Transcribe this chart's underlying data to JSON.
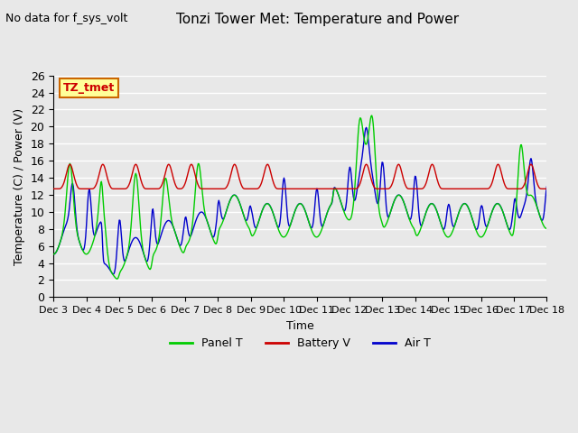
{
  "title": "Tonzi Tower Met: Temperature and Power",
  "top_left_text": "No data for f_sys_volt",
  "box_label": "TZ_tmet",
  "xlabel": "Time",
  "ylabel": "Temperature (C) / Power (V)",
  "ylim": [
    0,
    26
  ],
  "yticks": [
    0,
    2,
    4,
    6,
    8,
    10,
    12,
    14,
    16,
    18,
    20,
    22,
    24,
    26
  ],
  "xtick_labels": [
    "Dec 3",
    "Dec 4",
    "Dec 5",
    "Dec 6",
    "Dec 7",
    "Dec 8",
    "Dec 9",
    "Dec 10",
    "Dec 11",
    "Dec 12",
    "Dec 13",
    "Dec 14",
    "Dec 15",
    "Dec 16",
    "Dec 17",
    "Dec 18"
  ],
  "color_panel": "#00cc00",
  "color_battery": "#cc0000",
  "color_air": "#0000cc",
  "legend_labels": [
    "Panel T",
    "Battery V",
    "Air T"
  ],
  "bg_color": "#e8e8e8",
  "plot_bg_color": "#e8e8e8",
  "grid_color": "#ffffff",
  "box_facecolor": "#ffff99",
  "box_edgecolor": "#cc6600"
}
